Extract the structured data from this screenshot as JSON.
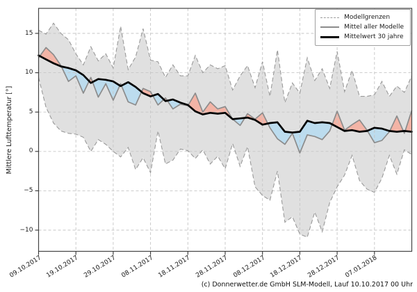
{
  "figure": {
    "ylabel": "Mittlere Lufttemperatur [°]",
    "caption": "(c) Donnerwetter.de GmbH SLM-Modell, Lauf 10.10.2017 00 Uhr"
  },
  "legend": {
    "position": "top-right",
    "items": [
      {
        "label": "Modellgrenzen",
        "style": "dashed-gray"
      },
      {
        "label": "Mittel aller Modelle",
        "style": "solid-gray"
      },
      {
        "label": "Mittelwert 30 jahre",
        "style": "solid-black-thick"
      }
    ]
  },
  "chart_data": {
    "type": "line",
    "title": "",
    "xlabel": "",
    "ylabel": "Mittlere Lufttemperatur [°]",
    "grid": true,
    "legend_position": "top-right",
    "x_unit": "Tage ab 09.10.2017",
    "x_step_days": 2,
    "x_domain_days": [
      0,
      100
    ],
    "x_tick_days": [
      0,
      10,
      20,
      30,
      40,
      50,
      60,
      70,
      80,
      90
    ],
    "x_tick_labels": [
      "09.10.2017",
      "19.10.2017",
      "29.10.2017",
      "08.11.2017",
      "18.11.2017",
      "28.11.2017",
      "08.12.2017",
      "18.12.2017",
      "28.12.2017",
      "07.01.2018"
    ],
    "ylim": [
      -12.7,
      18.2
    ],
    "y_tick_values": [
      15,
      10,
      5,
      0,
      -5,
      -10
    ],
    "y_tick_labels": [
      "15",
      "10",
      "5",
      "0",
      "−5",
      "−10"
    ],
    "series": [
      {
        "name": "Modellgrenzen (obere Grenze)",
        "role": "upper_bound",
        "style": "dashed-gray",
        "values": [
          15.4,
          14.9,
          16.3,
          15.0,
          14.2,
          12.4,
          11.0,
          13.3,
          11.5,
          12.4,
          10.6,
          15.9,
          10.4,
          12.0,
          15.6,
          11.6,
          11.4,
          9.4,
          11.0,
          9.6,
          9.6,
          12.2,
          10.0,
          11.0,
          10.5,
          10.9,
          7.8,
          9.6,
          10.9,
          8.1,
          11.4,
          7.0,
          12.9,
          6.2,
          8.7,
          7.4,
          11.9,
          9.0,
          10.5,
          8.0,
          12.7,
          7.6,
          10.3,
          7.0,
          7.0,
          7.2,
          8.9,
          7.0,
          8.3,
          7.5,
          9.6
        ]
      },
      {
        "name": "Modellgrenzen (untere Grenze)",
        "role": "lower_bound",
        "style": "dashed-gray",
        "values": [
          9.4,
          5.6,
          3.6,
          2.6,
          2.3,
          2.2,
          1.8,
          0.0,
          1.5,
          0.9,
          0.0,
          -0.7,
          0.5,
          -2.3,
          -0.8,
          -2.7,
          2.6,
          -1.6,
          -1.1,
          0.3,
          0.1,
          -0.9,
          0.2,
          -1.6,
          -0.6,
          -2.2,
          1.0,
          -1.9,
          0.6,
          -4.5,
          -5.6,
          -6.2,
          -2.5,
          -9.0,
          -8.3,
          -10.5,
          -10.9,
          -7.7,
          -10.2,
          -6.5,
          -4.5,
          -3.0,
          -0.5,
          -3.7,
          -4.8,
          -5.2,
          -3.4,
          -0.5,
          -2.9,
          0.2,
          -0.4
        ]
      },
      {
        "name": "Mittel aller Modelle",
        "role": "model_mean",
        "style": "solid-gray",
        "values": [
          11.9,
          13.2,
          12.3,
          10.9,
          8.9,
          9.6,
          7.4,
          9.4,
          6.9,
          8.6,
          6.5,
          8.6,
          6.3,
          5.9,
          8.0,
          7.6,
          5.9,
          6.8,
          5.4,
          6.0,
          5.8,
          7.4,
          5.0,
          6.3,
          5.4,
          5.7,
          4.1,
          3.3,
          4.8,
          4.1,
          4.9,
          3.0,
          1.6,
          0.9,
          2.3,
          -0.2,
          2.1,
          1.9,
          1.5,
          2.6,
          5.1,
          2.7,
          3.4,
          4.0,
          2.7,
          1.1,
          1.4,
          2.5,
          4.5,
          2.3,
          5.2
        ]
      },
      {
        "name": "Mittelwert 30 jahre",
        "role": "climate_mean_30y",
        "style": "solid-black-thick",
        "values": [
          12.2,
          11.7,
          11.2,
          10.8,
          10.6,
          10.3,
          9.7,
          8.7,
          9.2,
          9.1,
          8.9,
          8.3,
          8.8,
          8.2,
          7.4,
          7.0,
          7.3,
          6.4,
          6.6,
          6.2,
          5.9,
          5.1,
          4.7,
          4.9,
          4.8,
          4.9,
          4.1,
          4.2,
          4.3,
          4.0,
          3.4,
          3.6,
          3.7,
          2.5,
          2.4,
          2.5,
          3.9,
          3.6,
          3.7,
          3.6,
          3.1,
          2.6,
          2.7,
          2.5,
          2.6,
          3.0,
          2.9,
          2.6,
          2.5,
          2.6,
          2.5
        ]
      }
    ],
    "colors": {
      "band_fill": "#e0e0e0",
      "above_mean_fill": "#f3b4a6",
      "below_mean_fill": "#bcdcee",
      "bound_line": "#999999",
      "model_mean_line": "#8c8c8c",
      "climate_mean_line": "#000000",
      "grid_line": "#c6c6c6",
      "axis_border": "#444444"
    }
  }
}
